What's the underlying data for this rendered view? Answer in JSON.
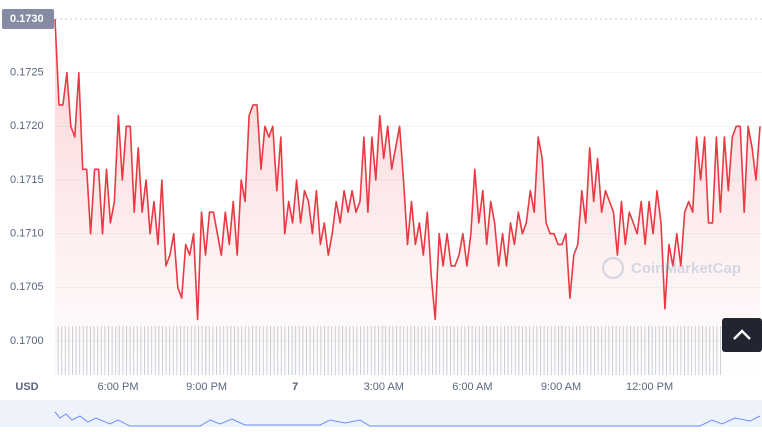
{
  "chart_data": {
    "type": "line",
    "currency": "USD",
    "watermark": "CoinMarketCap",
    "color": "#ea3943",
    "grid": true,
    "x_axis_labels": [
      "6:00 PM",
      "9:00 PM",
      "7",
      "3:00 AM",
      "6:00 AM",
      "9:00 AM",
      "12:00 PM"
    ],
    "ylim": [
      0.17,
      0.173
    ],
    "yticks": [
      {
        "value": 0.17,
        "label": "0.1700"
      },
      {
        "value": 0.1705,
        "label": "0.1705"
      },
      {
        "value": 0.171,
        "label": "0.1710"
      },
      {
        "value": 0.1715,
        "label": "0.1715"
      },
      {
        "value": 0.172,
        "label": "0.1720"
      },
      {
        "value": 0.1725,
        "label": "0.1725"
      },
      {
        "value": 0.173,
        "label": "0.1730"
      }
    ],
    "values": [
      0.173,
      0.1722,
      0.1722,
      0.1725,
      0.172,
      0.1719,
      0.1725,
      0.1716,
      0.1716,
      0.171,
      0.1716,
      0.1716,
      0.171,
      0.1716,
      0.1711,
      0.1713,
      0.1721,
      0.1715,
      0.172,
      0.172,
      0.1712,
      0.1718,
      0.1712,
      0.1715,
      0.171,
      0.1713,
      0.1709,
      0.1715,
      0.1707,
      0.1708,
      0.171,
      0.1705,
      0.1704,
      0.1709,
      0.1708,
      0.171,
      0.1702,
      0.1712,
      0.1708,
      0.1712,
      0.1712,
      0.171,
      0.1708,
      0.1712,
      0.1709,
      0.1713,
      0.1708,
      0.1715,
      0.1713,
      0.1721,
      0.1722,
      0.1722,
      0.1716,
      0.172,
      0.1719,
      0.172,
      0.1714,
      0.1719,
      0.171,
      0.1713,
      0.1711,
      0.1715,
      0.1711,
      0.1714,
      0.1713,
      0.171,
      0.1714,
      0.1709,
      0.1711,
      0.1708,
      0.171,
      0.1713,
      0.1711,
      0.1714,
      0.1712,
      0.1714,
      0.1712,
      0.1713,
      0.1719,
      0.1712,
      0.1719,
      0.1715,
      0.1721,
      0.1717,
      0.172,
      0.1716,
      0.1718,
      0.172,
      0.1715,
      0.1709,
      0.1713,
      0.1709,
      0.1711,
      0.1708,
      0.1712,
      0.1706,
      0.1702,
      0.171,
      0.1707,
      0.171,
      0.1707,
      0.1707,
      0.1708,
      0.171,
      0.1707,
      0.171,
      0.1716,
      0.1711,
      0.1714,
      0.1709,
      0.1713,
      0.1711,
      0.1707,
      0.171,
      0.1707,
      0.1711,
      0.1709,
      0.1712,
      0.171,
      0.1711,
      0.1714,
      0.1712,
      0.1719,
      0.1717,
      0.1711,
      0.171,
      0.171,
      0.1709,
      0.1709,
      0.171,
      0.1704,
      0.1708,
      0.1709,
      0.1714,
      0.1711,
      0.1718,
      0.1713,
      0.1717,
      0.1712,
      0.1714,
      0.1713,
      0.1712,
      0.1708,
      0.1713,
      0.1709,
      0.1712,
      0.1711,
      0.171,
      0.1713,
      0.1709,
      0.1713,
      0.171,
      0.1714,
      0.1711,
      0.1703,
      0.1709,
      0.1707,
      0.171,
      0.1707,
      0.1712,
      0.1713,
      0.1712,
      0.1719,
      0.1715,
      0.1719,
      0.1711,
      0.1711,
      0.1719,
      0.1712,
      0.1719,
      0.1714,
      0.1719,
      0.172,
      0.172,
      0.1712,
      0.172,
      0.1718,
      0.1715,
      0.172
    ]
  }
}
